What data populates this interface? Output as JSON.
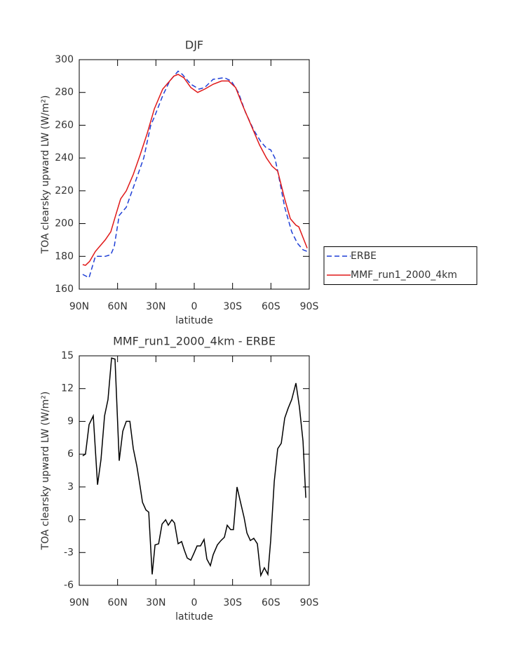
{
  "chart_data": [
    {
      "type": "line",
      "title": "DJF",
      "xlabel": "latitude",
      "ylabel": "TOA clearsky upward LW (W/m²)",
      "xlim": [
        90,
        -90
      ],
      "xticks": [
        {
          "value": 90,
          "label": "90N"
        },
        {
          "value": 60,
          "label": "60N"
        },
        {
          "value": 30,
          "label": "30N"
        },
        0,
        {
          "value": -30,
          "label": "30S"
        },
        {
          "value": -60,
          "label": "60S"
        },
        {
          "value": -90,
          "label": "90S"
        }
      ],
      "ylim": [
        160,
        300
      ],
      "yticks": [
        160,
        180,
        200,
        220,
        240,
        260,
        280,
        300
      ],
      "legend": "right",
      "series": [
        {
          "name": "ERBE",
          "color": "#1f3fd6",
          "line_style": "dashed",
          "x": [
            87.3,
            82.3,
            77.4,
            69.7,
            65.3,
            62.6,
            58.7,
            53.2,
            47.7,
            39.5,
            34.0,
            31.2,
            24.7,
            19.2,
            12.6,
            9.3,
            2.7,
            -3.8,
            -8.2,
            -14.8,
            -23.6,
            -29.0,
            -34.5,
            -40.0,
            -46.6,
            -52.1,
            -56.5,
            -59.8,
            -63.1,
            -65.3,
            -70.8,
            -76.3,
            -80.7,
            -85.1,
            -88.4
          ],
          "values": [
            169,
            167,
            180,
            180,
            181,
            186,
            205,
            210,
            222,
            240,
            260,
            265,
            278,
            287,
            293,
            291,
            285,
            282,
            283,
            288,
            289,
            287,
            280,
            268,
            257,
            250,
            246,
            245,
            240,
            232,
            210,
            195,
            188,
            184,
            183
          ]
        },
        {
          "name": "MMF_run1_2000_4km",
          "color": "#e01818",
          "line_style": "solid",
          "x": [
            87.3,
            85.1,
            81.8,
            77.4,
            69.7,
            65.3,
            61.5,
            57.6,
            53.2,
            47.7,
            42.3,
            36.8,
            31.2,
            24.7,
            15.9,
            12.6,
            8.2,
            2.7,
            -2.7,
            -8.2,
            -14.8,
            -21.4,
            -26.9,
            -32.4,
            -37.9,
            -44.5,
            -51.1,
            -56.5,
            -60.9,
            -65.3,
            -70.8,
            -75.2,
            -79.6,
            -81.8,
            -88.4
          ],
          "values": [
            175,
            174.5,
            177,
            183,
            190,
            195,
            205,
            215,
            220,
            230,
            242,
            255,
            270,
            282,
            290,
            291,
            289,
            283,
            280,
            282,
            285,
            287,
            287,
            283,
            272,
            260,
            248,
            240,
            235,
            232,
            215,
            203,
            199,
            198,
            185
          ]
        }
      ]
    },
    {
      "type": "line",
      "title": "MMF_run1_2000_4km - ERBE",
      "xlabel": "latitude",
      "ylabel": "TOA clearsky upward LW (W/m²)",
      "xlim": [
        90,
        -90
      ],
      "xticks": [
        {
          "value": 90,
          "label": "90N"
        },
        {
          "value": 60,
          "label": "60N"
        },
        {
          "value": 30,
          "label": "30N"
        },
        0,
        {
          "value": -30,
          "label": "30S"
        },
        {
          "value": -60,
          "label": "60S"
        },
        {
          "value": -90,
          "label": "90S"
        }
      ],
      "ylim": [
        -6,
        15
      ],
      "yticks": [
        -6,
        -3,
        0,
        3,
        6,
        9,
        12,
        15
      ],
      "series": [
        {
          "color": "#000000",
          "line_style": "solid",
          "x": [
            87.3,
            85.1,
            82.3,
            79.0,
            75.7,
            73.0,
            70.2,
            67.5,
            64.7,
            62.0,
            58.7,
            55.9,
            53.2,
            50.4,
            47.7,
            44.9,
            42.7,
            40.5,
            37.8,
            35.6,
            32.9,
            30.7,
            27.9,
            25.2,
            22.4,
            20.3,
            17.5,
            15.4,
            12.6,
            9.9,
            7.7,
            5.5,
            2.7,
            0,
            -2.2,
            -4.9,
            -7.7,
            -9.9,
            -12.6,
            -14.8,
            -18.1,
            -20.9,
            -23.6,
            -25.8,
            -28.5,
            -30.7,
            -33.5,
            -36.2,
            -39.0,
            -41.2,
            -43.9,
            -46.6,
            -49.4,
            -52.1,
            -54.9,
            -57.6,
            -59.8,
            -62.6,
            -65.3,
            -68.1,
            -70.8,
            -73.5,
            -76.3,
            -79.6,
            -82.3,
            -85.1,
            -87.3
          ],
          "values": [
            5.85,
            6.0,
            8.7,
            9.5,
            3.2,
            5.5,
            9.5,
            11,
            14.8,
            14.7,
            5.4,
            8.1,
            9,
            9,
            6.5,
            4.9,
            3.3,
            1.6,
            0.9,
            0.7,
            -5,
            -2.3,
            -2.2,
            -0.4,
            0,
            -0.5,
            0,
            -0.3,
            -2.2,
            -2,
            -2.8,
            -3.5,
            -3.7,
            -3,
            -2.4,
            -2.4,
            -1.8,
            -3.6,
            -4.2,
            -3.2,
            -2.3,
            -1.9,
            -1.6,
            -0.5,
            -0.9,
            -0.9,
            3.0,
            1.6,
            0.2,
            -1.2,
            -1.9,
            -1.7,
            -2.2,
            -5.1,
            -4.4,
            -5,
            -1.9,
            3.5,
            6.5,
            7.0,
            9.3,
            10.2,
            11,
            12.5,
            10.3,
            7.2,
            2.0
          ]
        }
      ]
    }
  ]
}
